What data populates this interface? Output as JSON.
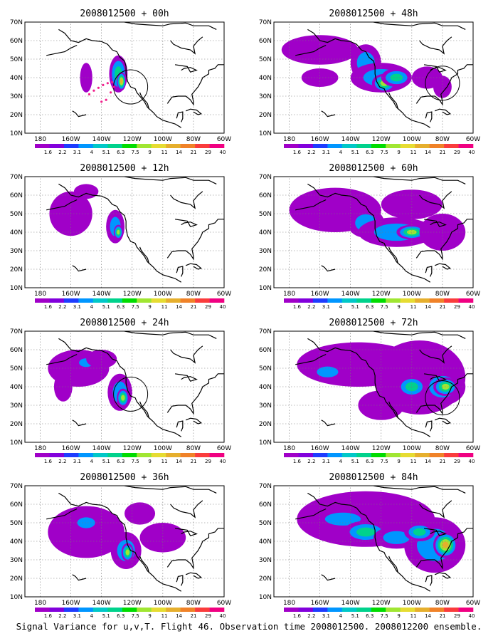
{
  "caption": "Signal Variance for u,v,T. Flight 46. Observation time 2008012500. 2008012200 ensemble.",
  "x_ticks": [
    "180",
    "160W",
    "140W",
    "120W",
    "100W",
    "80W",
    "60W"
  ],
  "y_ticks": [
    "10N",
    "20N",
    "30N",
    "40N",
    "50N",
    "60N",
    "70N"
  ],
  "colorbar": {
    "labels": [
      "1.6",
      "2.2",
      "3.1",
      "4",
      "5.1",
      "6.3",
      "7.5",
      "9",
      "11",
      "14",
      "21",
      "29",
      "40"
    ],
    "colors": [
      "#a000c8",
      "#8200dc",
      "#1e3cff",
      "#0096ff",
      "#00c8c8",
      "#00d28c",
      "#00dc00",
      "#a0e632",
      "#e6dc32",
      "#e6af2d",
      "#f08228",
      "#fa3c3c",
      "#f00082"
    ]
  },
  "panels": [
    {
      "title": "2008012500 + 00h",
      "circle": true,
      "dots": true,
      "blobs": [
        [
          -150,
          40,
          4,
          8,
          1
        ],
        [
          -129,
          42,
          6,
          10,
          3
        ],
        [
          -127,
          38,
          3,
          5,
          5
        ]
      ]
    },
    {
      "title": "2008012500 + 48h",
      "circle": true,
      "dots": false,
      "blobs": [
        [
          -160,
          55,
          25,
          8,
          1
        ],
        [
          -130,
          48,
          10,
          10,
          2
        ],
        [
          -120,
          40,
          20,
          8,
          2
        ],
        [
          -118,
          37,
          8,
          5,
          4
        ],
        [
          -110,
          40,
          10,
          5,
          3
        ],
        [
          -90,
          40,
          10,
          6,
          1
        ],
        [
          -160,
          40,
          12,
          5,
          1
        ],
        [
          -80,
          35,
          6,
          6,
          1
        ]
      ]
    },
    {
      "title": "2008012500 + 12h",
      "circle": false,
      "dots": false,
      "blobs": [
        [
          -160,
          50,
          14,
          12,
          1
        ],
        [
          -150,
          62,
          8,
          4,
          1
        ],
        [
          -131,
          43,
          6,
          9,
          2
        ],
        [
          -129,
          40,
          3,
          4,
          4
        ]
      ]
    },
    {
      "title": "2008012500 + 60h",
      "circle": false,
      "dots": false,
      "blobs": [
        [
          -150,
          52,
          30,
          12,
          1
        ],
        [
          -130,
          45,
          12,
          8,
          2
        ],
        [
          -110,
          40,
          25,
          8,
          2
        ],
        [
          -100,
          40,
          10,
          4,
          4
        ],
        [
          -100,
          55,
          20,
          8,
          1
        ],
        [
          -80,
          40,
          15,
          10,
          1
        ]
      ]
    },
    {
      "title": "2008012500 + 24h",
      "circle": true,
      "dots": false,
      "blobs": [
        [
          -155,
          50,
          20,
          10,
          1
        ],
        [
          -150,
          53,
          8,
          4,
          2
        ],
        [
          -165,
          40,
          6,
          8,
          1
        ],
        [
          -128,
          37,
          8,
          10,
          2
        ],
        [
          -126,
          34,
          4,
          5,
          4
        ],
        [
          -140,
          55,
          10,
          5,
          1
        ]
      ]
    },
    {
      "title": "2008012500 + 72h",
      "circle": true,
      "dots": false,
      "blobs": [
        [
          -135,
          52,
          40,
          12,
          1
        ],
        [
          -155,
          48,
          12,
          5,
          2
        ],
        [
          -95,
          45,
          30,
          20,
          1
        ],
        [
          -80,
          40,
          15,
          10,
          2
        ],
        [
          -78,
          40,
          8,
          5,
          4
        ],
        [
          -100,
          40,
          10,
          6,
          3
        ],
        [
          -120,
          30,
          15,
          8,
          1
        ]
      ]
    },
    {
      "title": "2008012500 + 36h",
      "circle": false,
      "dots": false,
      "blobs": [
        [
          -150,
          45,
          25,
          14,
          1
        ],
        [
          -150,
          50,
          10,
          5,
          2
        ],
        [
          -124,
          35,
          10,
          10,
          2
        ],
        [
          -123,
          34,
          4,
          5,
          4
        ],
        [
          -100,
          42,
          15,
          8,
          1
        ],
        [
          -115,
          55,
          10,
          6,
          1
        ]
      ]
    },
    {
      "title": "2008012500 + 84h",
      "circle": false,
      "dots": false,
      "blobs": [
        [
          -130,
          52,
          45,
          15,
          1
        ],
        [
          -145,
          52,
          20,
          6,
          2
        ],
        [
          -130,
          45,
          15,
          6,
          3
        ],
        [
          -85,
          38,
          20,
          15,
          2
        ],
        [
          -78,
          38,
          8,
          7,
          5
        ],
        [
          -110,
          42,
          15,
          6,
          2
        ],
        [
          -95,
          45,
          10,
          5,
          3
        ]
      ]
    }
  ]
}
